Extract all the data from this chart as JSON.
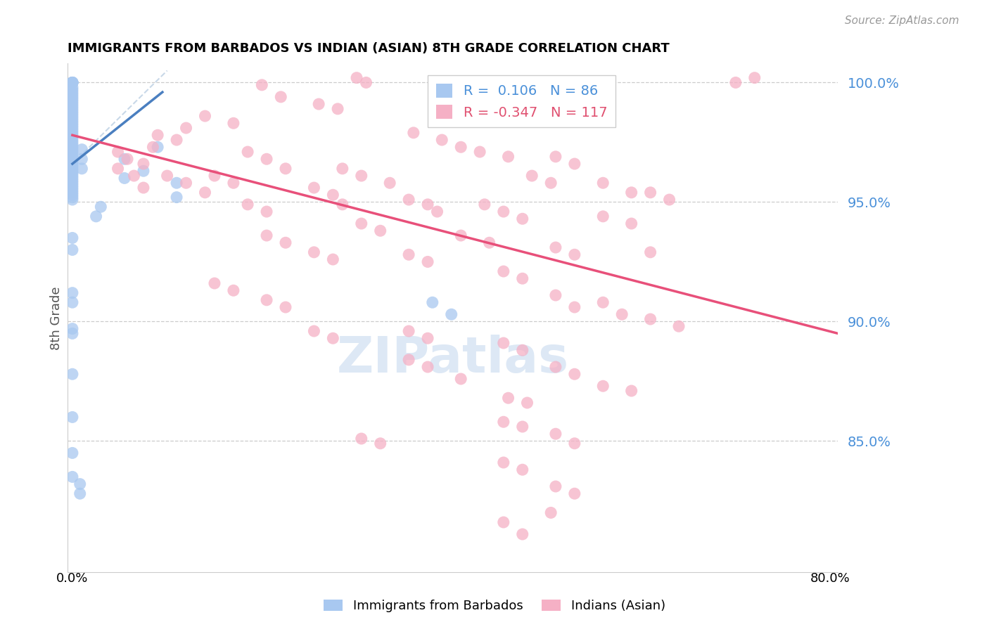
{
  "title": "IMMIGRANTS FROM BARBADOS VS INDIAN (ASIAN) 8TH GRADE CORRELATION CHART",
  "source": "Source: ZipAtlas.com",
  "ylabel": "8th Grade",
  "blue_R": 0.106,
  "blue_N": 86,
  "pink_R": -0.347,
  "pink_N": 117,
  "blue_color": "#a8c8f0",
  "pink_color": "#f5b0c5",
  "blue_line_color": "#4a7fc0",
  "pink_line_color": "#e8507a",
  "diag_line_color": "#c8d8e8",
  "watermark_color": "#dde8f5",
  "ylim": [
    0.795,
    1.008
  ],
  "xlim": [
    -0.005,
    0.808
  ],
  "yticks": [
    1.0,
    0.95,
    0.9,
    0.85
  ],
  "ytick_labels": [
    "100.0%",
    "95.0%",
    "90.0%",
    "85.0%"
  ],
  "xtick_left_label": "0.0%",
  "xtick_right_label": "80.0%",
  "blue_line_x": [
    0.0,
    0.095
  ],
  "blue_line_y": [
    0.966,
    0.996
  ],
  "pink_line_x": [
    0.0,
    0.808
  ],
  "pink_line_y": [
    0.978,
    0.895
  ],
  "blue_points": [
    [
      0.0,
      1.0
    ],
    [
      0.0,
      1.0
    ],
    [
      0.0,
      1.0
    ],
    [
      0.0,
      1.0
    ],
    [
      0.0,
      1.0
    ],
    [
      0.0,
      1.0
    ],
    [
      0.0,
      0.998
    ],
    [
      0.0,
      0.997
    ],
    [
      0.0,
      0.996
    ],
    [
      0.0,
      0.995
    ],
    [
      0.0,
      0.994
    ],
    [
      0.0,
      0.993
    ],
    [
      0.0,
      0.992
    ],
    [
      0.0,
      0.991
    ],
    [
      0.0,
      0.99
    ],
    [
      0.0,
      0.989
    ],
    [
      0.0,
      0.988
    ],
    [
      0.0,
      0.987
    ],
    [
      0.0,
      0.986
    ],
    [
      0.0,
      0.985
    ],
    [
      0.0,
      0.984
    ],
    [
      0.0,
      0.983
    ],
    [
      0.0,
      0.982
    ],
    [
      0.0,
      0.981
    ],
    [
      0.0,
      0.98
    ],
    [
      0.0,
      0.979
    ],
    [
      0.0,
      0.978
    ],
    [
      0.0,
      0.977
    ],
    [
      0.0,
      0.976
    ],
    [
      0.0,
      0.975
    ],
    [
      0.0,
      0.974
    ],
    [
      0.0,
      0.973
    ],
    [
      0.0,
      0.972
    ],
    [
      0.0,
      0.971
    ],
    [
      0.0,
      0.97
    ],
    [
      0.0,
      0.969
    ],
    [
      0.0,
      0.968
    ],
    [
      0.0,
      0.967
    ],
    [
      0.0,
      0.966
    ],
    [
      0.0,
      0.965
    ],
    [
      0.0,
      0.964
    ],
    [
      0.0,
      0.963
    ],
    [
      0.0,
      0.962
    ],
    [
      0.0,
      0.961
    ],
    [
      0.0,
      0.96
    ],
    [
      0.0,
      0.959
    ],
    [
      0.0,
      0.958
    ],
    [
      0.0,
      0.957
    ],
    [
      0.0,
      0.956
    ],
    [
      0.0,
      0.955
    ],
    [
      0.0,
      0.954
    ],
    [
      0.0,
      0.953
    ],
    [
      0.0,
      0.952
    ],
    [
      0.0,
      0.951
    ],
    [
      0.01,
      0.972
    ],
    [
      0.01,
      0.968
    ],
    [
      0.01,
      0.964
    ],
    [
      0.0,
      0.935
    ],
    [
      0.0,
      0.93
    ],
    [
      0.0,
      0.912
    ],
    [
      0.0,
      0.908
    ],
    [
      0.0,
      0.897
    ],
    [
      0.0,
      0.895
    ],
    [
      0.0,
      0.878
    ],
    [
      0.0,
      0.86
    ],
    [
      0.0,
      0.845
    ],
    [
      0.0,
      0.835
    ],
    [
      0.008,
      0.832
    ],
    [
      0.008,
      0.828
    ],
    [
      0.09,
      0.973
    ],
    [
      0.055,
      0.968
    ],
    [
      0.055,
      0.96
    ],
    [
      0.075,
      0.963
    ],
    [
      0.11,
      0.958
    ],
    [
      0.11,
      0.952
    ],
    [
      0.03,
      0.948
    ],
    [
      0.025,
      0.944
    ],
    [
      0.38,
      0.908
    ],
    [
      0.4,
      0.903
    ]
  ],
  "pink_points": [
    [
      0.3,
      1.002
    ],
    [
      0.31,
      1.0
    ],
    [
      0.72,
      1.002
    ],
    [
      0.7,
      1.0
    ],
    [
      0.2,
      0.999
    ],
    [
      0.22,
      0.994
    ],
    [
      0.26,
      0.991
    ],
    [
      0.28,
      0.989
    ],
    [
      0.14,
      0.986
    ],
    [
      0.17,
      0.983
    ],
    [
      0.12,
      0.981
    ],
    [
      0.36,
      0.979
    ],
    [
      0.39,
      0.976
    ],
    [
      0.09,
      0.978
    ],
    [
      0.11,
      0.976
    ],
    [
      0.085,
      0.973
    ],
    [
      0.41,
      0.973
    ],
    [
      0.43,
      0.971
    ],
    [
      0.46,
      0.969
    ],
    [
      0.51,
      0.969
    ],
    [
      0.53,
      0.966
    ],
    [
      0.048,
      0.971
    ],
    [
      0.058,
      0.968
    ],
    [
      0.075,
      0.966
    ],
    [
      0.185,
      0.971
    ],
    [
      0.205,
      0.968
    ],
    [
      0.225,
      0.964
    ],
    [
      0.285,
      0.964
    ],
    [
      0.305,
      0.961
    ],
    [
      0.335,
      0.958
    ],
    [
      0.485,
      0.961
    ],
    [
      0.505,
      0.958
    ],
    [
      0.56,
      0.958
    ],
    [
      0.59,
      0.954
    ],
    [
      0.61,
      0.954
    ],
    [
      0.63,
      0.951
    ],
    [
      0.255,
      0.956
    ],
    [
      0.275,
      0.953
    ],
    [
      0.285,
      0.949
    ],
    [
      0.355,
      0.951
    ],
    [
      0.375,
      0.949
    ],
    [
      0.385,
      0.946
    ],
    [
      0.435,
      0.949
    ],
    [
      0.455,
      0.946
    ],
    [
      0.475,
      0.943
    ],
    [
      0.185,
      0.949
    ],
    [
      0.205,
      0.946
    ],
    [
      0.56,
      0.944
    ],
    [
      0.59,
      0.941
    ],
    [
      0.048,
      0.964
    ],
    [
      0.065,
      0.961
    ],
    [
      0.075,
      0.956
    ],
    [
      0.1,
      0.961
    ],
    [
      0.12,
      0.958
    ],
    [
      0.15,
      0.961
    ],
    [
      0.17,
      0.958
    ],
    [
      0.14,
      0.954
    ],
    [
      0.305,
      0.941
    ],
    [
      0.325,
      0.938
    ],
    [
      0.41,
      0.936
    ],
    [
      0.44,
      0.933
    ],
    [
      0.51,
      0.931
    ],
    [
      0.53,
      0.928
    ],
    [
      0.61,
      0.929
    ],
    [
      0.205,
      0.936
    ],
    [
      0.225,
      0.933
    ],
    [
      0.255,
      0.929
    ],
    [
      0.275,
      0.926
    ],
    [
      0.355,
      0.928
    ],
    [
      0.375,
      0.925
    ],
    [
      0.455,
      0.921
    ],
    [
      0.475,
      0.918
    ],
    [
      0.51,
      0.911
    ],
    [
      0.53,
      0.906
    ],
    [
      0.56,
      0.908
    ],
    [
      0.58,
      0.903
    ],
    [
      0.61,
      0.901
    ],
    [
      0.64,
      0.898
    ],
    [
      0.15,
      0.916
    ],
    [
      0.17,
      0.913
    ],
    [
      0.205,
      0.909
    ],
    [
      0.225,
      0.906
    ],
    [
      0.255,
      0.896
    ],
    [
      0.275,
      0.893
    ],
    [
      0.355,
      0.896
    ],
    [
      0.375,
      0.893
    ],
    [
      0.455,
      0.891
    ],
    [
      0.475,
      0.888
    ],
    [
      0.51,
      0.881
    ],
    [
      0.53,
      0.878
    ],
    [
      0.56,
      0.873
    ],
    [
      0.59,
      0.871
    ],
    [
      0.41,
      0.876
    ],
    [
      0.455,
      0.858
    ],
    [
      0.475,
      0.856
    ],
    [
      0.51,
      0.853
    ],
    [
      0.53,
      0.849
    ],
    [
      0.46,
      0.868
    ],
    [
      0.48,
      0.866
    ],
    [
      0.455,
      0.841
    ],
    [
      0.475,
      0.838
    ],
    [
      0.51,
      0.831
    ],
    [
      0.53,
      0.828
    ],
    [
      0.455,
      0.816
    ],
    [
      0.475,
      0.811
    ],
    [
      0.305,
      0.851
    ],
    [
      0.325,
      0.849
    ],
    [
      0.505,
      0.82
    ],
    [
      0.355,
      0.884
    ],
    [
      0.375,
      0.881
    ]
  ]
}
